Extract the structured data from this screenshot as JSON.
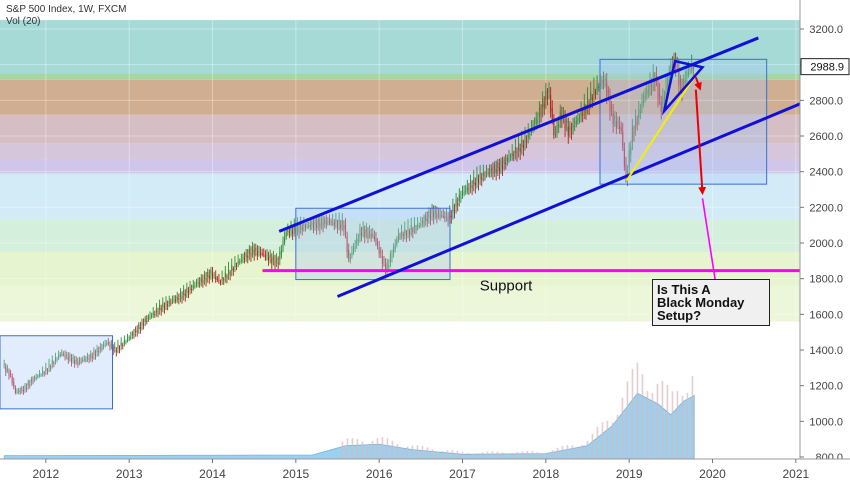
{
  "legend": {
    "symbol_line": "S&P 500 Index, 1W, FXCM",
    "volume_line": "Vol (20)"
  },
  "annotations": {
    "support_label": "Support",
    "callout_lines": [
      "Is This A",
      "Black Monday",
      "Setup?"
    ]
  },
  "price_badge": "2988.9",
  "colors": {
    "channel": "#1010d8",
    "support": "#ff00ff",
    "price_up": "#2f8a3a",
    "price_down": "#b21f1f",
    "volume": "#8cc8ec",
    "arrow_red": "#ee0000",
    "arrow_magenta": "#ff00ff",
    "trend_yellow": "#f5f000",
    "box_stroke": "#3a6fd0"
  },
  "chart_data": {
    "type": "candlestick",
    "title": "S&P 500 Index, 1W, FXCM",
    "xlabel": "",
    "ylabel": "",
    "x_ticks": [
      "2012",
      "2013",
      "2014",
      "2015",
      "2016",
      "2017",
      "2018",
      "2019",
      "2020",
      "2021"
    ],
    "y_ticks": [
      800,
      1000,
      1200,
      1400,
      1600,
      1800,
      2000,
      2200,
      2400,
      2600,
      2800,
      3000,
      3200
    ],
    "ylim": [
      700,
      3250
    ],
    "xlim": [
      2011.45,
      2021.05
    ],
    "last_price": 2988.9,
    "price_path": [
      {
        "t": 2011.5,
        "v": 1320
      },
      {
        "t": 2011.6,
        "v": 1250
      },
      {
        "t": 2011.65,
        "v": 1160
      },
      {
        "t": 2011.75,
        "v": 1180
      },
      {
        "t": 2011.85,
        "v": 1230
      },
      {
        "t": 2012.0,
        "v": 1280
      },
      {
        "t": 2012.2,
        "v": 1380
      },
      {
        "t": 2012.4,
        "v": 1330
      },
      {
        "t": 2012.55,
        "v": 1360
      },
      {
        "t": 2012.75,
        "v": 1440
      },
      {
        "t": 2012.85,
        "v": 1400
      },
      {
        "t": 2013.0,
        "v": 1460
      },
      {
        "t": 2013.2,
        "v": 1560
      },
      {
        "t": 2013.4,
        "v": 1640
      },
      {
        "t": 2013.6,
        "v": 1690
      },
      {
        "t": 2013.8,
        "v": 1760
      },
      {
        "t": 2014.0,
        "v": 1830
      },
      {
        "t": 2014.1,
        "v": 1780
      },
      {
        "t": 2014.3,
        "v": 1880
      },
      {
        "t": 2014.5,
        "v": 1960
      },
      {
        "t": 2014.6,
        "v": 1940
      },
      {
        "t": 2014.8,
        "v": 1890
      },
      {
        "t": 2014.9,
        "v": 2060
      },
      {
        "t": 2015.1,
        "v": 2090
      },
      {
        "t": 2015.4,
        "v": 2120
      },
      {
        "t": 2015.6,
        "v": 2100
      },
      {
        "t": 2015.65,
        "v": 1900
      },
      {
        "t": 2015.8,
        "v": 2070
      },
      {
        "t": 2015.95,
        "v": 2040
      },
      {
        "t": 2016.1,
        "v": 1850
      },
      {
        "t": 2016.25,
        "v": 2040
      },
      {
        "t": 2016.5,
        "v": 2100
      },
      {
        "t": 2016.65,
        "v": 2170
      },
      {
        "t": 2016.85,
        "v": 2140
      },
      {
        "t": 2017.0,
        "v": 2270
      },
      {
        "t": 2017.2,
        "v": 2360
      },
      {
        "t": 2017.5,
        "v": 2440
      },
      {
        "t": 2017.75,
        "v": 2560
      },
      {
        "t": 2017.9,
        "v": 2680
      },
      {
        "t": 2018.05,
        "v": 2860
      },
      {
        "t": 2018.12,
        "v": 2590
      },
      {
        "t": 2018.2,
        "v": 2730
      },
      {
        "t": 2018.3,
        "v": 2620
      },
      {
        "t": 2018.45,
        "v": 2730
      },
      {
        "t": 2018.6,
        "v": 2850
      },
      {
        "t": 2018.72,
        "v": 2920
      },
      {
        "t": 2018.82,
        "v": 2700
      },
      {
        "t": 2018.92,
        "v": 2640
      },
      {
        "t": 2018.98,
        "v": 2350
      },
      {
        "t": 2019.05,
        "v": 2610
      },
      {
        "t": 2019.2,
        "v": 2820
      },
      {
        "t": 2019.33,
        "v": 2940
      },
      {
        "t": 2019.4,
        "v": 2750
      },
      {
        "t": 2019.52,
        "v": 2990
      },
      {
        "t": 2019.58,
        "v": 3020
      },
      {
        "t": 2019.64,
        "v": 2850
      },
      {
        "t": 2019.7,
        "v": 2940
      },
      {
        "t": 2019.75,
        "v": 2980
      },
      {
        "t": 2019.78,
        "v": 2989
      }
    ],
    "volume": [
      {
        "t": 2011.5,
        "v": 0.05
      },
      {
        "t": 2015.2,
        "v": 0.06
      },
      {
        "t": 2015.6,
        "v": 0.2
      },
      {
        "t": 2016.0,
        "v": 0.22
      },
      {
        "t": 2016.4,
        "v": 0.14
      },
      {
        "t": 2017.0,
        "v": 0.07
      },
      {
        "t": 2018.0,
        "v": 0.08
      },
      {
        "t": 2018.5,
        "v": 0.2
      },
      {
        "t": 2018.8,
        "v": 0.5
      },
      {
        "t": 2019.1,
        "v": 0.98
      },
      {
        "t": 2019.35,
        "v": 0.82
      },
      {
        "t": 2019.5,
        "v": 0.66
      },
      {
        "t": 2019.65,
        "v": 0.86
      },
      {
        "t": 2019.78,
        "v": 0.95
      }
    ],
    "channel_upper": [
      {
        "t": 2014.8,
        "v": 2065
      },
      {
        "t": 2020.55,
        "v": 3150
      }
    ],
    "channel_lower": [
      {
        "t": 2015.5,
        "v": 1700
      },
      {
        "t": 2021.05,
        "v": 2780
      }
    ],
    "support_level": {
      "t1": 2014.6,
      "t2": 2021.05,
      "v": 1845
    },
    "boxes": [
      {
        "t1": 2011.45,
        "t2": 2012.8,
        "v1": 1070,
        "v2": 1480
      },
      {
        "t1": 2015.0,
        "t2": 2016.85,
        "v1": 1795,
        "v2": 2195
      },
      {
        "t1": 2018.65,
        "t2": 2020.65,
        "v1": 2330,
        "v2": 3030
      }
    ],
    "fib_bands": [
      {
        "v1": 2950,
        "v2": 3250,
        "color": "#6ec4be",
        "opacity": 0.62
      },
      {
        "v1": 2915,
        "v2": 2950,
        "color": "#7ec67e",
        "opacity": 0.7
      },
      {
        "v1": 2720,
        "v2": 2915,
        "color": "#c8a07e",
        "opacity": 0.85
      },
      {
        "v1": 2560,
        "v2": 2720,
        "color": "#c7a8b0",
        "opacity": 0.75
      },
      {
        "v1": 2470,
        "v2": 2560,
        "color": "#bfa8c8",
        "opacity": 0.65
      },
      {
        "v1": 2390,
        "v2": 2470,
        "color": "#a898d8",
        "opacity": 0.55
      },
      {
        "v1": 2130,
        "v2": 2390,
        "color": "#9ed3ea",
        "opacity": 0.45
      },
      {
        "v1": 1950,
        "v2": 2130,
        "color": "#9fdcb0",
        "opacity": 0.45
      },
      {
        "v1": 1760,
        "v2": 1950,
        "color": "#cde9a0",
        "opacity": 0.5
      },
      {
        "v1": 1560,
        "v2": 1760,
        "color": "#dff0c0",
        "opacity": 0.6
      }
    ],
    "triangle": [
      {
        "t": 2019.55,
        "v": 3020
      },
      {
        "t": 2019.88,
        "v": 2985
      },
      {
        "t": 2019.42,
        "v": 2740
      }
    ],
    "yellow_line": [
      {
        "t": 2018.97,
        "v": 2350
      },
      {
        "t": 2019.82,
        "v": 2960
      }
    ],
    "red_arrows": [
      {
        "from": {
          "t": 2019.8,
          "v": 2930
        },
        "to": {
          "t": 2019.85,
          "v": 2865
        }
      },
      {
        "from": {
          "t": 2019.8,
          "v": 2860
        },
        "to": {
          "t": 2019.88,
          "v": 2280
        }
      }
    ],
    "magenta_arrow": {
      "from": {
        "t": 2019.88,
        "v": 2250
      },
      "to": {
        "t": 2020.05,
        "v": 1740
      }
    }
  }
}
